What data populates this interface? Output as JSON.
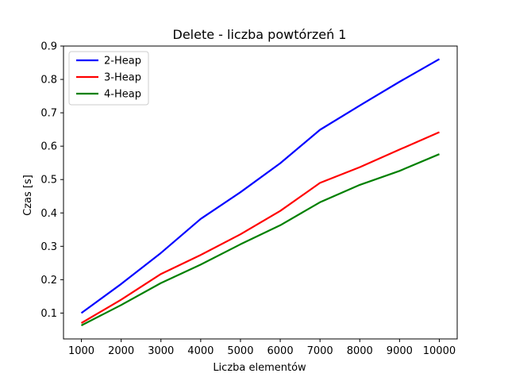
{
  "chart_data": {
    "type": "line",
    "title": "Delete - liczba powtórzeń 1",
    "xlabel": "Liczba elementów",
    "ylabel": "Czas [s]",
    "x": [
      1000,
      2000,
      3000,
      4000,
      5000,
      6000,
      7000,
      8000,
      9000,
      10000
    ],
    "xticks": [
      1000,
      2000,
      3000,
      4000,
      5000,
      6000,
      7000,
      8000,
      9000,
      10000
    ],
    "yticks": [
      0.1,
      0.2,
      0.3,
      0.4,
      0.5,
      0.6,
      0.7,
      0.8,
      0.9
    ],
    "xlim": [
      550,
      10450
    ],
    "ylim": [
      0.0225,
      0.9
    ],
    "grid": false,
    "legend_position": "top-left",
    "series": [
      {
        "name": "2-Heap",
        "color": "#0000ff",
        "values": [
          0.1,
          0.187,
          0.28,
          0.382,
          0.462,
          0.549,
          0.649,
          0.722,
          0.793,
          0.861
        ]
      },
      {
        "name": "3-Heap",
        "color": "#ff0000",
        "values": [
          0.07,
          0.14,
          0.217,
          0.274,
          0.336,
          0.406,
          0.49,
          0.537,
          0.59,
          0.642
        ]
      },
      {
        "name": "4-Heap",
        "color": "#008000",
        "values": [
          0.063,
          0.124,
          0.19,
          0.245,
          0.306,
          0.363,
          0.432,
          0.484,
          0.526,
          0.576
        ]
      }
    ]
  }
}
